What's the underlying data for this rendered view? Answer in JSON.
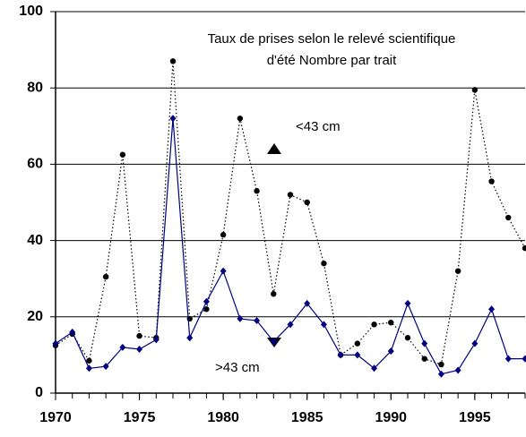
{
  "chart_data": {
    "type": "line",
    "title": [
      "Taux de prises selon le relevé scientifique",
      "d'été Nombre par trait"
    ],
    "x": [
      1970,
      1971,
      1972,
      1973,
      1974,
      1975,
      1976,
      1977,
      1978,
      1979,
      1980,
      1981,
      1982,
      1983,
      1984,
      1985,
      1986,
      1987,
      1988,
      1989,
      1990,
      1991,
      1992,
      1993,
      1994,
      1995,
      1996,
      1997,
      1998
    ],
    "series": [
      {
        "name": "<43 cm",
        "color": "#000000",
        "marker": "circle",
        "dash": "dotted",
        "values": [
          12.5,
          15.5,
          8.5,
          30.5,
          62.5,
          15,
          14.5,
          87,
          19.5,
          22,
          41.5,
          72,
          53,
          26,
          52,
          50,
          34,
          10,
          13,
          18,
          18.5,
          14.5,
          9,
          7.5,
          32,
          79.5,
          55.5,
          46,
          38
        ]
      },
      {
        "name": ">43 cm",
        "color": "#000080",
        "marker": "diamond",
        "dash": "solid",
        "values": [
          13,
          16,
          6.5,
          7,
          12,
          11.5,
          14,
          72,
          14.5,
          24,
          32,
          19.5,
          19,
          13.5,
          18,
          23.5,
          18,
          10,
          10,
          6.5,
          11,
          23.5,
          13,
          5,
          6,
          13,
          22,
          9,
          9
        ]
      }
    ],
    "xlim": [
      1970,
      1998
    ],
    "xticks": [
      1970,
      1975,
      1980,
      1985,
      1990,
      1995
    ],
    "ylim": [
      0,
      100
    ],
    "yticks": [
      0,
      20,
      40,
      60,
      80,
      100
    ],
    "grid": true
  }
}
